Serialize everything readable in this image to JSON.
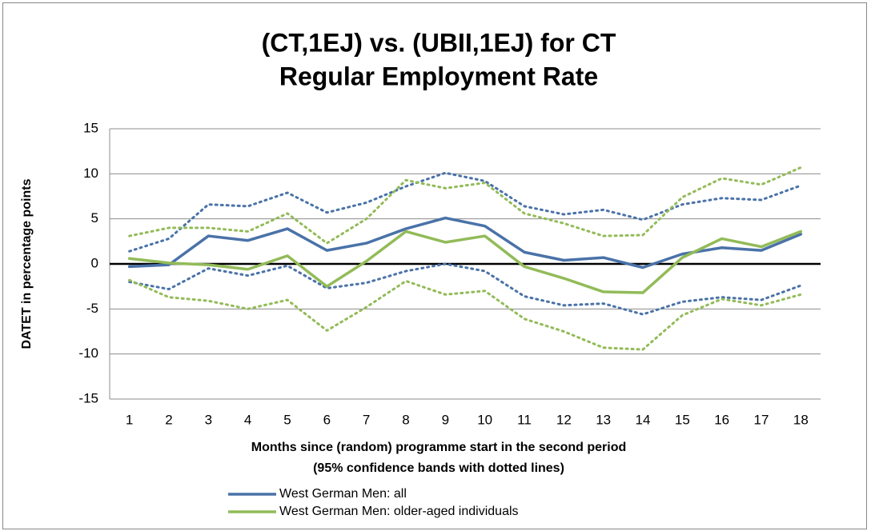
{
  "chart_data": {
    "type": "line",
    "title": [
      "(CT,1EJ) vs. (UBII,1EJ) for CT",
      "Regular Employment Rate"
    ],
    "x_label": [
      "Months since (random) programme start in the second period",
      "(95% confidence bands with dotted lines)"
    ],
    "y_label": "DATET in percentage points",
    "categories": [
      "1",
      "2",
      "3",
      "4",
      "5",
      "6",
      "7",
      "8",
      "9",
      "10",
      "11",
      "12",
      "13",
      "14",
      "15",
      "16",
      "17",
      "18"
    ],
    "ylim": [
      -15,
      15
    ],
    "yticks": [
      -15,
      -10,
      -5,
      0,
      5,
      10,
      15
    ],
    "grid": true,
    "series": [
      {
        "name": "West German Men: all",
        "color": "#4a72a8",
        "values": [
          -0.3,
          -0.1,
          3.1,
          2.6,
          3.9,
          1.5,
          2.3,
          3.9,
          5.1,
          4.2,
          1.3,
          0.4,
          0.7,
          -0.4,
          1.1,
          1.8,
          1.5,
          3.3
        ],
        "upper": [
          1.4,
          2.8,
          6.6,
          6.4,
          7.9,
          5.7,
          6.8,
          8.6,
          10.1,
          9.2,
          6.4,
          5.5,
          6.0,
          4.9,
          6.6,
          7.3,
          7.1,
          8.7
        ],
        "lower": [
          -2.0,
          -2.8,
          -0.5,
          -1.3,
          -0.2,
          -2.7,
          -2.1,
          -0.8,
          0.0,
          -0.8,
          -3.6,
          -4.6,
          -4.4,
          -5.6,
          -4.2,
          -3.7,
          -4.0,
          -2.4
        ]
      },
      {
        "name": "West German Men: older-aged individuals",
        "color": "#92bb58",
        "values": [
          0.6,
          0.1,
          -0.1,
          -0.6,
          0.9,
          -2.5,
          0.3,
          3.6,
          2.4,
          3.1,
          -0.3,
          -1.6,
          -3.1,
          -3.2,
          0.7,
          2.8,
          1.9,
          3.6
        ],
        "upper": [
          3.1,
          4.0,
          4.0,
          3.6,
          5.6,
          2.3,
          5.0,
          9.3,
          8.4,
          9.0,
          5.6,
          4.5,
          3.1,
          3.2,
          7.4,
          9.5,
          8.8,
          10.7
        ],
        "lower": [
          -1.8,
          -3.7,
          -4.1,
          -5.0,
          -4.0,
          -7.4,
          -4.8,
          -1.9,
          -3.4,
          -3.0,
          -6.1,
          -7.5,
          -9.3,
          -9.5,
          -5.7,
          -3.9,
          -4.6,
          -3.4
        ]
      }
    ]
  }
}
